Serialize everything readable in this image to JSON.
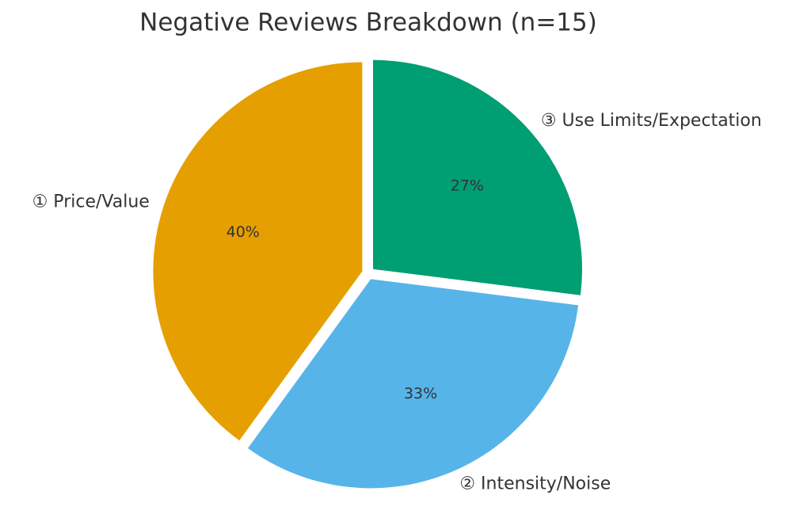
{
  "chart_data": {
    "type": "pie",
    "title": "Negative Reviews Breakdown (n=15)",
    "categories": [
      "① Price/Value",
      "② Intensity/Noise",
      "③ Use Limits/Expectation"
    ],
    "values": [
      40,
      33,
      27
    ],
    "value_labels": [
      "40%",
      "33%",
      "27%"
    ],
    "colors": [
      "#E69F00",
      "#56B4E9",
      "#009E73"
    ]
  }
}
